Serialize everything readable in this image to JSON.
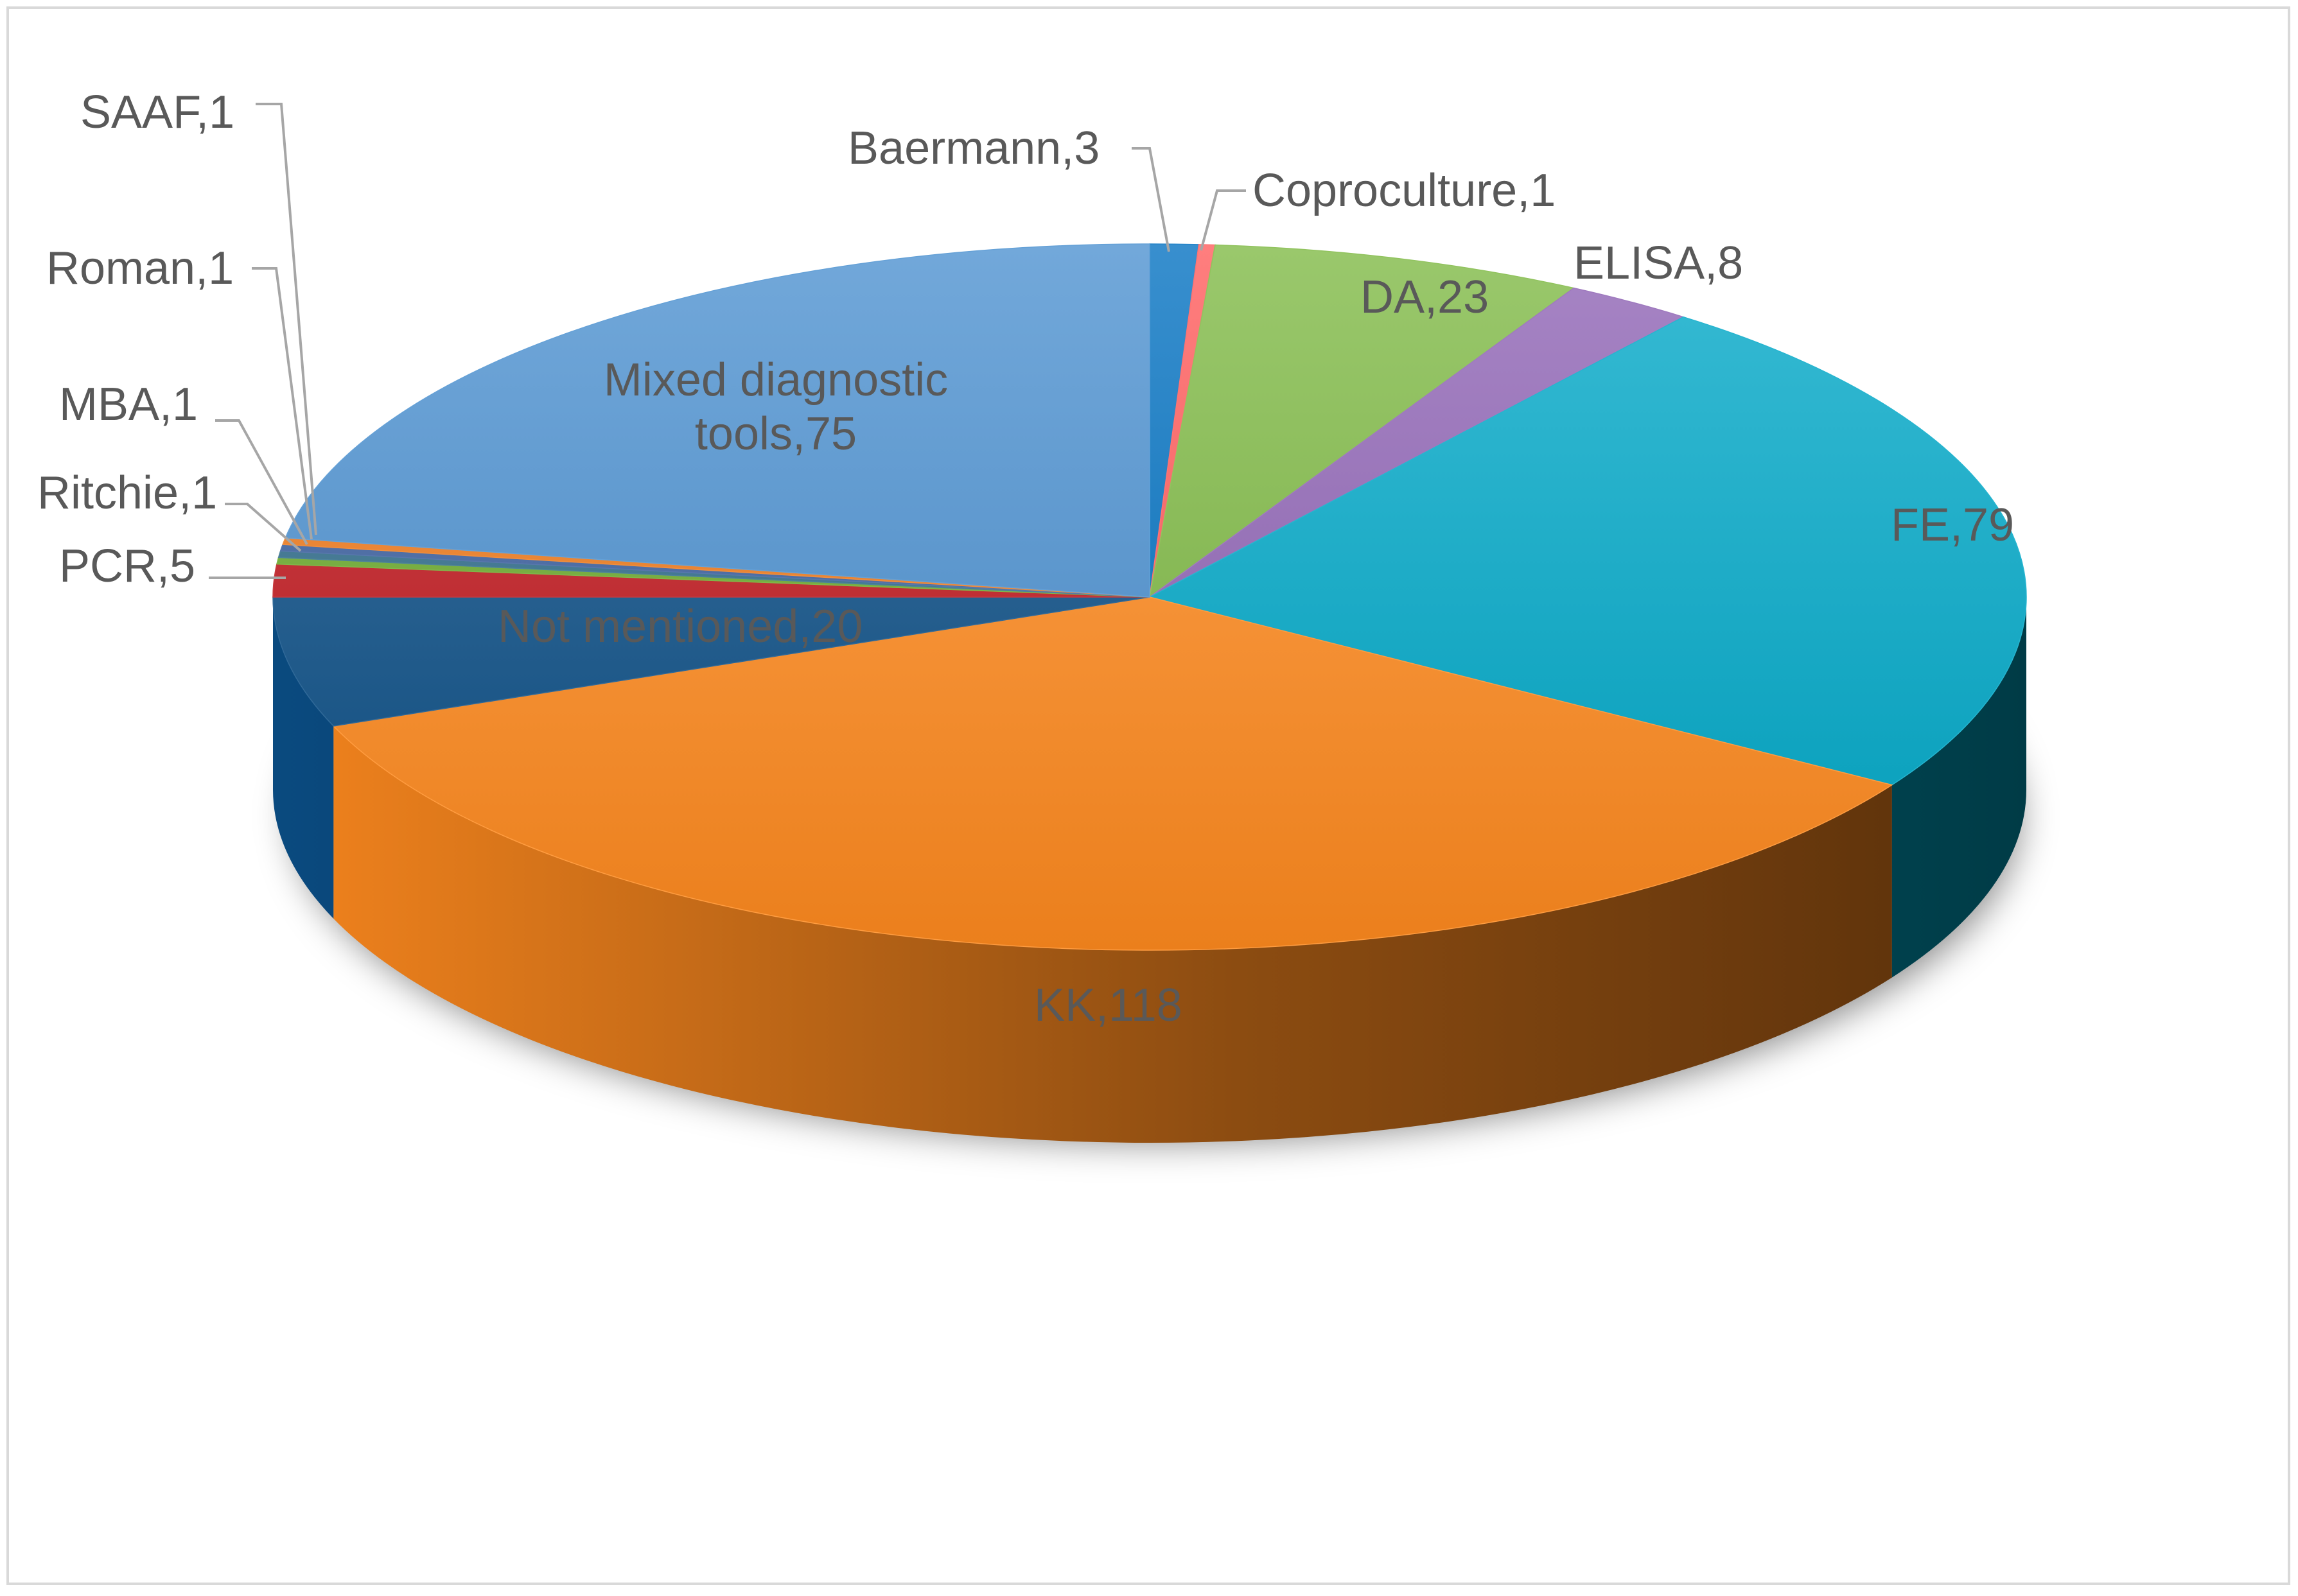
{
  "chart_data": {
    "type": "pie",
    "style": "3d",
    "title": "",
    "slices": [
      {
        "label": "Baermann,3",
        "name": "Baermann",
        "value": 3,
        "color": "#0070C0"
      },
      {
        "label": "Coproculture,1",
        "name": "Coproculture",
        "value": 1,
        "color": "#FF5A5A"
      },
      {
        "label": "DA,23",
        "name": "DA",
        "value": 23,
        "color": "#7DB842"
      },
      {
        "label": "ELISA,8",
        "name": "ELISA",
        "value": 8,
        "color": "#8E63B4"
      },
      {
        "label": "FE,79",
        "name": "FE",
        "value": 79,
        "color": "#00A8C8"
      },
      {
        "label": "KK,118",
        "name": "KK",
        "value": 118,
        "color": "#FF8A1E"
      },
      {
        "label": "Not mentioned,20",
        "name": "Not mentioned",
        "value": 20,
        "color": "#0B4E86"
      },
      {
        "label": "PCR,5",
        "name": "PCR",
        "value": 5,
        "color": "#C0161C"
      },
      {
        "label": "Ritchie,1",
        "name": "Ritchie",
        "value": 1,
        "color": "#6AAA2A"
      },
      {
        "label": "MBA,1",
        "name": "MBA",
        "value": 1,
        "color": "#2E6C8A"
      },
      {
        "label": "Roman,1",
        "name": "Roman",
        "value": 1,
        "color": "#3A5F9F"
      },
      {
        "label": "SAAF,1",
        "name": "SAAF",
        "value": 1,
        "color": "#F07A1A"
      },
      {
        "label": "Mixed diagnostic tools,75",
        "name": "Mixed diagnostic tools",
        "value": 75,
        "color": "#4A90D0"
      }
    ]
  }
}
